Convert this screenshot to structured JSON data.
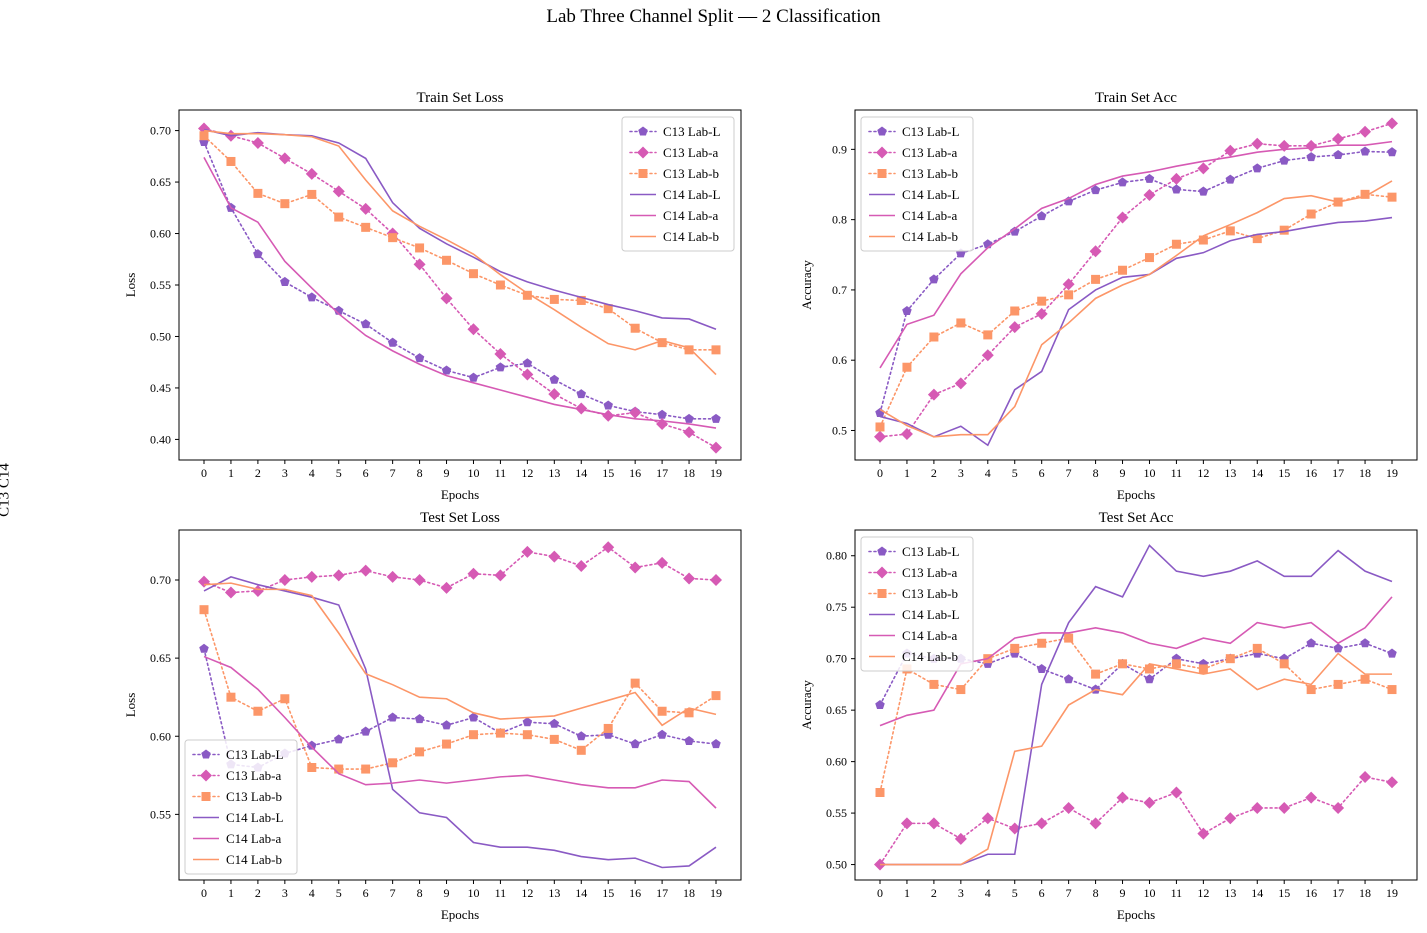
{
  "figure": {
    "title": "Lab Three Channel Split — 2 Classification",
    "side_label": "C13 C14"
  },
  "series_styles": {
    "C13 Lab-L": {
      "color": "#8a5ac4",
      "marker": "pentagon",
      "dash": "dotted"
    },
    "C13 Lab-a": {
      "color": "#d65ab4",
      "marker": "diamond",
      "dash": "dotted"
    },
    "C13 Lab-b": {
      "color": "#fc9668",
      "marker": "square",
      "dash": "dotted"
    },
    "C14 Lab-L": {
      "color": "#8a5ac4",
      "marker": "none",
      "dash": "solid"
    },
    "C14 Lab-a": {
      "color": "#d65ab4",
      "marker": "none",
      "dash": "solid"
    },
    "C14 Lab-b": {
      "color": "#fc9668",
      "marker": "none",
      "dash": "solid"
    }
  },
  "chart_data": [
    {
      "type": "line",
      "title": "Train Set Loss",
      "xlabel": "Epochs",
      "ylabel": "Loss",
      "x": [
        0,
        1,
        2,
        3,
        4,
        5,
        6,
        7,
        8,
        9,
        10,
        11,
        12,
        13,
        14,
        15,
        16,
        17,
        18,
        19
      ],
      "ylim": [
        0.38,
        0.72
      ],
      "yticks": [
        "0.40",
        "0.45",
        "0.50",
        "0.55",
        "0.60",
        "0.65",
        "0.70"
      ],
      "legend": "top-right",
      "series": [
        {
          "name": "C13 Lab-L",
          "values": [
            0.689,
            0.625,
            0.58,
            0.553,
            0.538,
            0.525,
            0.512,
            0.494,
            0.479,
            0.467,
            0.46,
            0.47,
            0.474,
            0.458,
            0.444,
            0.433,
            0.427,
            0.424,
            0.42,
            0.42
          ]
        },
        {
          "name": "C13 Lab-a",
          "values": [
            0.702,
            0.695,
            0.688,
            0.673,
            0.658,
            0.641,
            0.624,
            0.6,
            0.57,
            0.537,
            0.507,
            0.483,
            0.463,
            0.444,
            0.43,
            0.423,
            0.426,
            0.415,
            0.407,
            0.392
          ]
        },
        {
          "name": "C13 Lab-b",
          "values": [
            0.695,
            0.67,
            0.639,
            0.629,
            0.638,
            0.616,
            0.606,
            0.596,
            0.586,
            0.574,
            0.561,
            0.55,
            0.54,
            0.536,
            0.535,
            0.527,
            0.508,
            0.494,
            0.487,
            0.487
          ]
        },
        {
          "name": "C14 Lab-L",
          "values": [
            0.701,
            0.695,
            0.698,
            0.696,
            0.695,
            0.688,
            0.673,
            0.63,
            0.605,
            0.59,
            0.577,
            0.563,
            0.553,
            0.545,
            0.538,
            0.531,
            0.525,
            0.518,
            0.517,
            0.507
          ]
        },
        {
          "name": "C14 Lab-a",
          "values": [
            0.674,
            0.625,
            0.611,
            0.573,
            0.547,
            0.522,
            0.501,
            0.486,
            0.473,
            0.462,
            0.455,
            0.448,
            0.441,
            0.434,
            0.429,
            0.424,
            0.42,
            0.418,
            0.415,
            0.411
          ]
        },
        {
          "name": "C14 Lab-b",
          "values": [
            0.7,
            0.697,
            0.697,
            0.696,
            0.694,
            0.685,
            0.652,
            0.622,
            0.607,
            0.594,
            0.58,
            0.56,
            0.542,
            0.526,
            0.509,
            0.493,
            0.487,
            0.496,
            0.489,
            0.463
          ]
        }
      ]
    },
    {
      "type": "line",
      "title": "Train Set Acc",
      "xlabel": "Epochs",
      "ylabel": "Accuracy",
      "x": [
        0,
        1,
        2,
        3,
        4,
        5,
        6,
        7,
        8,
        9,
        10,
        11,
        12,
        13,
        14,
        15,
        16,
        17,
        18,
        19
      ],
      "ylim": [
        0.458,
        0.956
      ],
      "yticks": [
        "0.5",
        "0.6",
        "0.7",
        "0.8",
        "0.9"
      ],
      "legend": "top-left",
      "series": [
        {
          "name": "C13 Lab-L",
          "values": [
            0.525,
            0.67,
            0.715,
            0.752,
            0.765,
            0.783,
            0.805,
            0.826,
            0.842,
            0.853,
            0.858,
            0.843,
            0.84,
            0.857,
            0.873,
            0.884,
            0.889,
            0.892,
            0.897,
            0.896
          ]
        },
        {
          "name": "C13 Lab-a",
          "values": [
            0.491,
            0.495,
            0.551,
            0.567,
            0.607,
            0.647,
            0.666,
            0.708,
            0.755,
            0.803,
            0.835,
            0.858,
            0.873,
            0.898,
            0.908,
            0.905,
            0.905,
            0.915,
            0.925,
            0.937
          ]
        },
        {
          "name": "C13 Lab-b",
          "values": [
            0.505,
            0.59,
            0.633,
            0.653,
            0.636,
            0.67,
            0.684,
            0.693,
            0.715,
            0.728,
            0.746,
            0.765,
            0.771,
            0.784,
            0.773,
            0.785,
            0.808,
            0.825,
            0.836,
            0.832
          ]
        },
        {
          "name": "C14 Lab-L",
          "values": [
            0.52,
            0.51,
            0.491,
            0.506,
            0.479,
            0.558,
            0.584,
            0.672,
            0.7,
            0.718,
            0.722,
            0.745,
            0.753,
            0.77,
            0.779,
            0.783,
            0.79,
            0.796,
            0.798,
            0.803
          ]
        },
        {
          "name": "C14 Lab-a",
          "values": [
            0.589,
            0.651,
            0.664,
            0.723,
            0.76,
            0.787,
            0.816,
            0.83,
            0.85,
            0.862,
            0.868,
            0.876,
            0.883,
            0.889,
            0.896,
            0.9,
            0.902,
            0.906,
            0.906,
            0.911
          ]
        },
        {
          "name": "C14 Lab-b",
          "values": [
            0.53,
            0.507,
            0.491,
            0.494,
            0.494,
            0.534,
            0.622,
            0.653,
            0.688,
            0.707,
            0.722,
            0.749,
            0.777,
            0.793,
            0.81,
            0.83,
            0.834,
            0.825,
            0.833,
            0.855
          ]
        }
      ]
    },
    {
      "type": "line",
      "title": "Test Set Loss",
      "xlabel": "Epochs",
      "ylabel": "Loss",
      "x": [
        0,
        1,
        2,
        3,
        4,
        5,
        6,
        7,
        8,
        9,
        10,
        11,
        12,
        13,
        14,
        15,
        16,
        17,
        18,
        19
      ],
      "ylim": [
        0.508,
        0.732
      ],
      "yticks": [
        "0.55",
        "0.60",
        "0.65",
        "0.70"
      ],
      "legend": "bottom-left",
      "series": [
        {
          "name": "C13 Lab-L",
          "values": [
            0.656,
            0.582,
            0.58,
            0.589,
            0.594,
            0.598,
            0.603,
            0.612,
            0.611,
            0.607,
            0.612,
            0.602,
            0.609,
            0.608,
            0.6,
            0.601,
            0.595,
            0.601,
            0.597,
            0.595
          ]
        },
        {
          "name": "C13 Lab-a",
          "values": [
            0.699,
            0.692,
            0.693,
            0.7,
            0.702,
            0.703,
            0.706,
            0.702,
            0.7,
            0.695,
            0.704,
            0.703,
            0.718,
            0.715,
            0.709,
            0.721,
            0.708,
            0.711,
            0.701,
            0.7
          ]
        },
        {
          "name": "C13 Lab-b",
          "values": [
            0.681,
            0.625,
            0.616,
            0.624,
            0.58,
            0.579,
            0.579,
            0.583,
            0.59,
            0.595,
            0.601,
            0.602,
            0.601,
            0.598,
            0.591,
            0.605,
            0.634,
            0.616,
            0.615,
            0.626
          ]
        },
        {
          "name": "C14 Lab-L",
          "values": [
            0.693,
            0.702,
            0.697,
            0.693,
            0.689,
            0.684,
            0.643,
            0.566,
            0.551,
            0.548,
            0.532,
            0.529,
            0.529,
            0.527,
            0.523,
            0.521,
            0.522,
            0.516,
            0.517,
            0.529
          ]
        },
        {
          "name": "C14 Lab-a",
          "values": [
            0.651,
            0.644,
            0.63,
            0.612,
            0.593,
            0.576,
            0.569,
            0.57,
            0.572,
            0.57,
            0.572,
            0.574,
            0.575,
            0.572,
            0.569,
            0.567,
            0.567,
            0.572,
            0.571,
            0.554
          ]
        },
        {
          "name": "C14 Lab-b",
          "values": [
            0.697,
            0.698,
            0.694,
            0.694,
            0.69,
            0.666,
            0.64,
            0.633,
            0.625,
            0.624,
            0.615,
            0.611,
            0.612,
            0.613,
            0.618,
            0.623,
            0.628,
            0.607,
            0.618,
            0.614
          ]
        }
      ]
    },
    {
      "type": "line",
      "title": "Test Set Acc",
      "xlabel": "Epochs",
      "ylabel": "Accuracy",
      "x": [
        0,
        1,
        2,
        3,
        4,
        5,
        6,
        7,
        8,
        9,
        10,
        11,
        12,
        13,
        14,
        15,
        16,
        17,
        18,
        19
      ],
      "ylim": [
        0.485,
        0.825
      ],
      "yticks": [
        "0.50",
        "0.55",
        "0.60",
        "0.65",
        "0.70",
        "0.75",
        "0.80"
      ],
      "legend": "top-left",
      "series": [
        {
          "name": "C13 Lab-L",
          "values": [
            0.655,
            0.705,
            0.7,
            0.7,
            0.695,
            0.705,
            0.69,
            0.68,
            0.67,
            0.695,
            0.68,
            0.7,
            0.695,
            0.7,
            0.705,
            0.7,
            0.715,
            0.71,
            0.715,
            0.705
          ]
        },
        {
          "name": "C13 Lab-a",
          "values": [
            0.5,
            0.54,
            0.54,
            0.525,
            0.545,
            0.535,
            0.54,
            0.555,
            0.54,
            0.565,
            0.56,
            0.57,
            0.53,
            0.545,
            0.555,
            0.555,
            0.565,
            0.555,
            0.585,
            0.58
          ]
        },
        {
          "name": "C13 Lab-b",
          "values": [
            0.57,
            0.69,
            0.675,
            0.67,
            0.7,
            0.71,
            0.715,
            0.72,
            0.685,
            0.695,
            0.69,
            0.695,
            0.69,
            0.7,
            0.71,
            0.695,
            0.67,
            0.675,
            0.68,
            0.67
          ]
        },
        {
          "name": "C14 Lab-L",
          "values": [
            0.5,
            0.5,
            0.5,
            0.5,
            0.51,
            0.51,
            0.675,
            0.735,
            0.77,
            0.76,
            0.81,
            0.785,
            0.78,
            0.785,
            0.795,
            0.78,
            0.78,
            0.805,
            0.785,
            0.775
          ]
        },
        {
          "name": "C14 Lab-a",
          "values": [
            0.635,
            0.645,
            0.65,
            0.695,
            0.7,
            0.72,
            0.725,
            0.725,
            0.73,
            0.725,
            0.715,
            0.71,
            0.72,
            0.715,
            0.735,
            0.73,
            0.735,
            0.715,
            0.73,
            0.76
          ]
        },
        {
          "name": "C14 Lab-b",
          "values": [
            0.5,
            0.5,
            0.5,
            0.5,
            0.515,
            0.61,
            0.615,
            0.655,
            0.67,
            0.665,
            0.695,
            0.69,
            0.685,
            0.69,
            0.67,
            0.68,
            0.675,
            0.705,
            0.685,
            0.685
          ]
        }
      ]
    }
  ]
}
